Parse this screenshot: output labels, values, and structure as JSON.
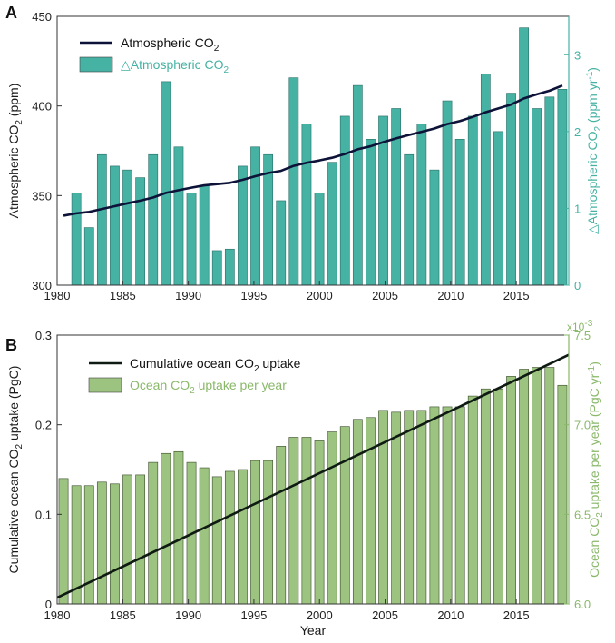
{
  "chart_data": [
    {
      "panel": "A",
      "type": "bar+line",
      "x": [
        1980,
        1981,
        1982,
        1983,
        1984,
        1985,
        1986,
        1987,
        1988,
        1989,
        1990,
        1991,
        1992,
        1993,
        1994,
        1995,
        1996,
        1997,
        1998,
        1999,
        2000,
        2001,
        2002,
        2003,
        2004,
        2005,
        2006,
        2007,
        2008,
        2009,
        2010,
        2011,
        2012,
        2013,
        2014,
        2015,
        2016,
        2017,
        2018,
        2019
      ],
      "xlim": [
        1980,
        2019
      ],
      "xticks": [
        1980,
        1985,
        1990,
        1995,
        2000,
        2005,
        2010,
        2015
      ],
      "xtick_labels": [
        "1980",
        "1985",
        "1990",
        "1995",
        "2000",
        "2005",
        "2010",
        "2015"
      ],
      "line": {
        "name": "Atmospheric CO2",
        "axis": "left",
        "values": [
          338.8,
          340.1,
          340.9,
          342.5,
          344.1,
          345.7,
          347.2,
          348.9,
          351.5,
          353.0,
          354.4,
          355.7,
          356.4,
          357.1,
          358.8,
          360.8,
          362.6,
          363.8,
          366.6,
          368.3,
          369.6,
          371.1,
          373.2,
          375.8,
          377.5,
          379.8,
          381.9,
          383.8,
          385.6,
          387.4,
          389.9,
          391.6,
          393.9,
          396.5,
          398.6,
          400.8,
          404.2,
          406.5,
          408.5,
          411.4
        ],
        "color": "#0d1238"
      },
      "bars": {
        "name": "△Atmospheric CO2",
        "axis": "right",
        "values": [
          0,
          1.2,
          0.75,
          1.7,
          1.55,
          1.5,
          1.4,
          1.7,
          2.65,
          1.8,
          1.2,
          1.3,
          0.45,
          0.47,
          1.55,
          1.8,
          1.7,
          1.1,
          2.7,
          2.1,
          1.2,
          1.6,
          2.2,
          2.6,
          1.9,
          2.2,
          2.3,
          1.7,
          2.1,
          1.5,
          2.4,
          1.9,
          2.2,
          2.75,
          2.0,
          2.5,
          3.35,
          2.3,
          2.45,
          2.55
        ],
        "color": "#45b2a3"
      },
      "left_axis": {
        "label": "Atmospheric CO",
        "label_sub": "2",
        "label_unit": " (ppm)",
        "ylim": [
          300,
          450
        ],
        "ticks": [
          300,
          350,
          400,
          450
        ]
      },
      "right_axis": {
        "label": "△Atmospheric CO",
        "label_sub": "2",
        "label_unit": " (ppm yr",
        "label_sup": "-1",
        "label_end": ")",
        "ylim": [
          0,
          3.5
        ],
        "ticks": [
          0,
          1,
          2,
          3
        ]
      },
      "legend": [
        {
          "text": "Atmospheric CO",
          "sub": "2",
          "kind": "line",
          "color": "#0d1238",
          "text_color": "#111111"
        },
        {
          "text": "△Atmospheric CO",
          "sub": "2",
          "kind": "bar",
          "color": "#45b2a3",
          "text_color": "#45b2a3"
        }
      ],
      "legend_position": "top-left",
      "right_axis_color": "#45b2a3"
    },
    {
      "panel": "B",
      "type": "bar+line",
      "x": [
        1980,
        1981,
        1982,
        1983,
        1984,
        1985,
        1986,
        1987,
        1988,
        1989,
        1990,
        1991,
        1992,
        1993,
        1994,
        1995,
        1996,
        1997,
        1998,
        1999,
        2000,
        2001,
        2002,
        2003,
        2004,
        2005,
        2006,
        2007,
        2008,
        2009,
        2010,
        2011,
        2012,
        2013,
        2014,
        2015,
        2016,
        2017,
        2018,
        2019
      ],
      "xlim": [
        1980,
        2019
      ],
      "xticks": [
        1980,
        1985,
        1990,
        1995,
        2000,
        2005,
        2010,
        2015
      ],
      "xtick_labels": [
        "1980",
        "1985",
        "1990",
        "1995",
        "2000",
        "2005",
        "2010",
        "2015"
      ],
      "xlabel": "Year",
      "line": {
        "name": "Cumulative ocean CO2 uptake",
        "axis": "left",
        "start": [
          1980,
          0.007
        ],
        "end": [
          2019,
          0.278
        ],
        "color": "#0f1a12"
      },
      "bars": {
        "name": "Ocean CO2 uptake per year",
        "axis": "right",
        "values": [
          6.7,
          6.66,
          6.66,
          6.68,
          6.67,
          6.72,
          6.72,
          6.79,
          6.84,
          6.85,
          6.79,
          6.76,
          6.71,
          6.74,
          6.75,
          6.8,
          6.8,
          6.88,
          6.93,
          6.93,
          6.91,
          6.96,
          6.99,
          7.03,
          7.04,
          7.08,
          7.07,
          7.08,
          7.08,
          7.1,
          7.1,
          7.1,
          7.16,
          7.2,
          7.2,
          7.27,
          7.31,
          7.32,
          7.32,
          7.22
        ],
        "color": "#9cc480",
        "stroke": "#3a4a2a"
      },
      "left_axis": {
        "label": "Cumulative ocean CO",
        "label_sub": "2",
        "label_unit": " uptake (PgC)",
        "ylim": [
          0,
          0.3
        ],
        "ticks": [
          0,
          0.1,
          0.2,
          0.3
        ],
        "tick_labels": [
          "0",
          "0.1",
          "0.2",
          "0.3"
        ]
      },
      "right_axis": {
        "label": "Ocean CO",
        "label_sub": "2",
        "label_unit": " uptake per year (PgC yr",
        "label_sup": "-1",
        "label_end": ")",
        "ylim": [
          6.0,
          7.5
        ],
        "ticks": [
          6.0,
          6.5,
          7.0,
          7.5
        ],
        "tick_labels": [
          "6.0",
          "6.5",
          "7.0",
          "7.5"
        ],
        "multiplier": "x10",
        "multiplier_exp": "-3"
      },
      "legend": [
        {
          "text": "Cumulative ocean CO",
          "sub": "2",
          "tail": " uptake",
          "kind": "line",
          "color": "#0f1a12",
          "text_color": "#111111"
        },
        {
          "text": "Ocean CO",
          "sub": "2",
          "tail": " uptake per year",
          "kind": "bar",
          "color": "#9cc480",
          "text_color": "#8ab86a"
        }
      ],
      "legend_position": "top-left",
      "right_axis_color": "#8ab86a"
    }
  ]
}
